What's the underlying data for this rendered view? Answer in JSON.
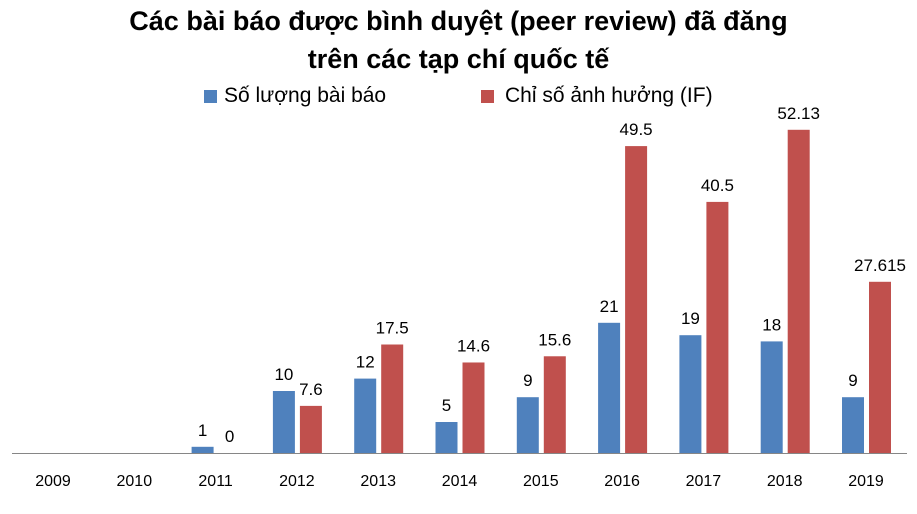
{
  "chart_data": {
    "type": "bar",
    "title": [
      "Các bài báo được bình duyệt (peer review) đã đăng",
      "trên các tạp chí quốc tế"
    ],
    "xlabel": "",
    "ylabel": "",
    "ylim": [
      0,
      60
    ],
    "grid": false,
    "legend_placement": "top",
    "categories": [
      "2009",
      "2010",
      "2011",
      "2012",
      "2013",
      "2014",
      "2015",
      "2016",
      "2017",
      "2018",
      "2019"
    ],
    "series": [
      {
        "name": "Số lượng bài báo",
        "color": "#4F81BD",
        "values": [
          null,
          null,
          1,
          10,
          12,
          5,
          9,
          21,
          19,
          18,
          9
        ],
        "labels": [
          "",
          "",
          "1",
          "10",
          "12",
          "5",
          "9",
          "21",
          "19",
          "18",
          "9"
        ]
      },
      {
        "name": "Chỉ số ảnh hưởng (IF)",
        "color": "#C0504D",
        "values": [
          null,
          null,
          0,
          7.6,
          17.5,
          14.6,
          15.6,
          49.5,
          40.5,
          52.13,
          27.615
        ],
        "labels": [
          "",
          "",
          "0",
          "7.6",
          "17.5",
          "14.6",
          "15.6",
          "49.5",
          "40.5",
          "52.13",
          "27.615"
        ]
      }
    ]
  }
}
